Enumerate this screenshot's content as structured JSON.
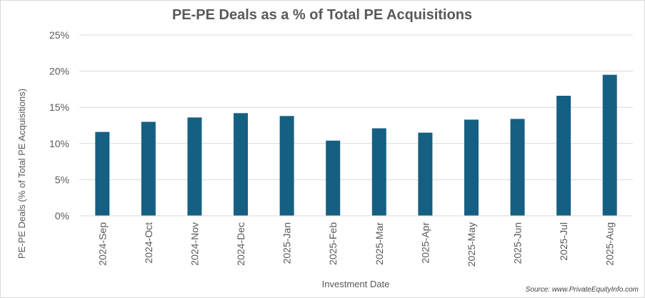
{
  "chart_data": {
    "type": "bar",
    "title": "PE-PE Deals as a % of Total PE Acquisitions",
    "xlabel": "Investment Date",
    "ylabel": "PE-PE Deals (% of Total PE Acquisitions)",
    "categories": [
      "2024-Sep",
      "2024-Oct",
      "2024-Nov",
      "2024-Dec",
      "2025-Jan",
      "2025-Feb",
      "2025-Mar",
      "2025-Apr",
      "2025-May",
      "2025-Jun",
      "2025-Jul",
      "2025-Aug"
    ],
    "values": [
      11.6,
      13.0,
      13.6,
      14.2,
      13.8,
      10.4,
      12.1,
      11.5,
      13.3,
      13.4,
      16.6,
      19.5
    ],
    "ylim": [
      0,
      25
    ],
    "yticks": [
      0,
      5,
      10,
      15,
      20,
      25
    ],
    "ytick_labels": [
      "0%",
      "5%",
      "10%",
      "15%",
      "20%",
      "25%"
    ],
    "grid": true,
    "bar_color": "#156082",
    "source": "Source: www.PrivateEquityInfo.com"
  }
}
